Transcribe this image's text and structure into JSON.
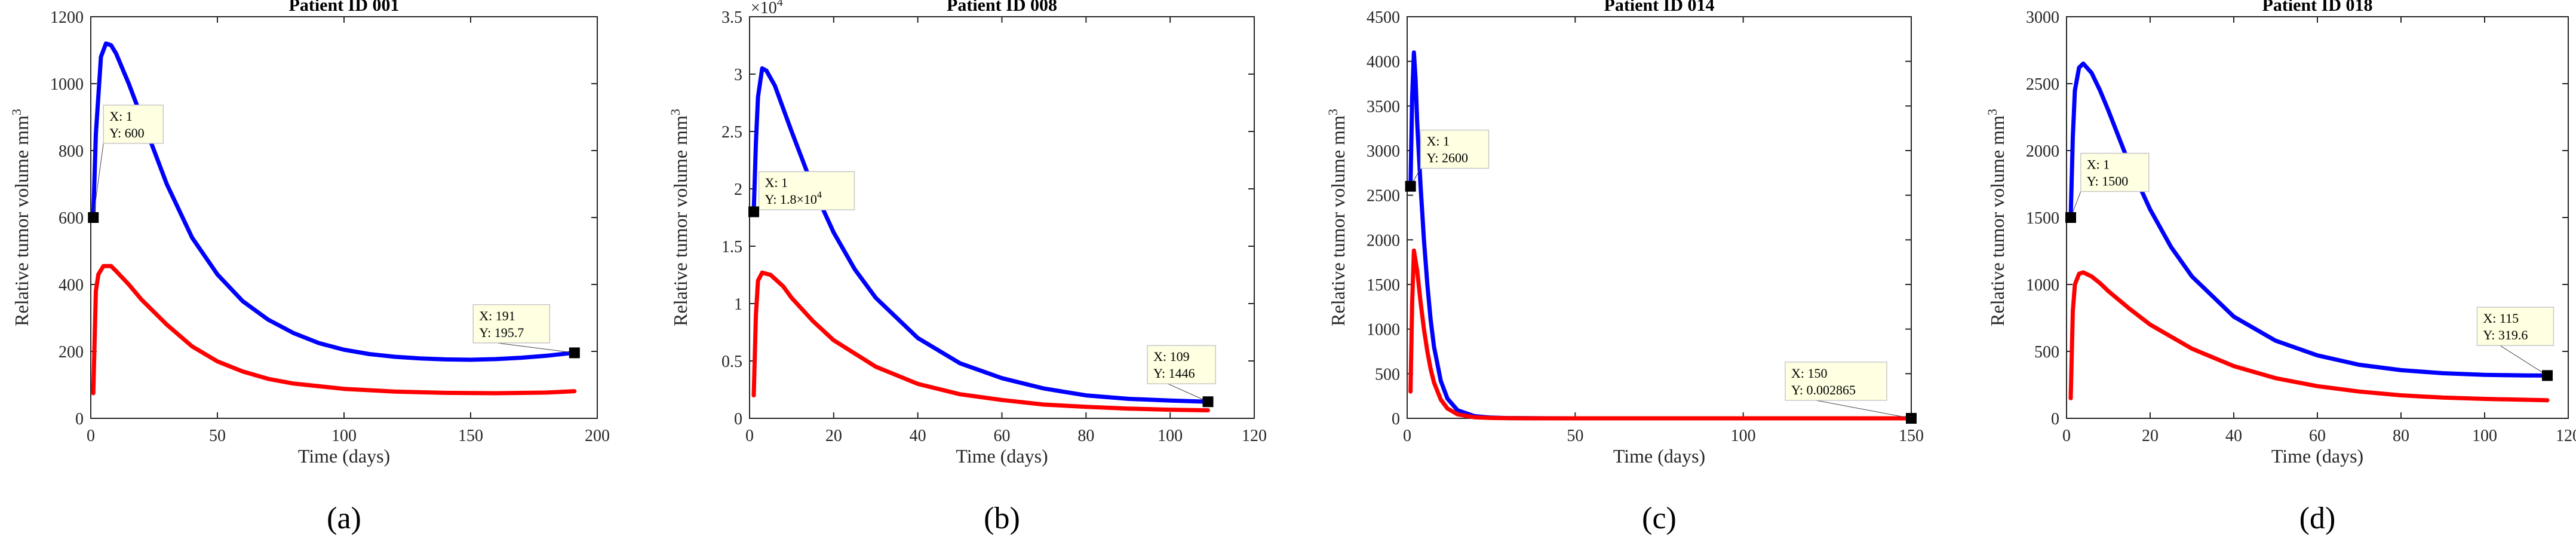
{
  "chart_data": [
    {
      "type": "line",
      "panel_label": "(a)",
      "panel_letter": "a",
      "title": "Patient ID 001",
      "xlabel": "Time (days)",
      "ylabel": "Relative tumor volume mm",
      "ylabel_superscript": "3",
      "xlim": [
        0,
        200
      ],
      "ylim": [
        0,
        1200
      ],
      "xticks": [
        0,
        50,
        100,
        150,
        200
      ],
      "yticks": [
        0,
        200,
        400,
        600,
        800,
        1000,
        1200
      ],
      "ytick_multiplier": "",
      "ytick_multiplier_exp": "",
      "series": [
        {
          "name": "upper",
          "color": "#0000ff",
          "x": [
            1,
            2,
            4,
            6,
            8,
            10,
            15,
            20,
            25,
            30,
            40,
            50,
            60,
            70,
            80,
            90,
            100,
            110,
            120,
            130,
            140,
            150,
            160,
            170,
            180,
            191
          ],
          "y": [
            600,
            850,
            1080,
            1120,
            1115,
            1090,
            1000,
            900,
            800,
            700,
            540,
            430,
            350,
            295,
            255,
            225,
            205,
            192,
            184,
            179,
            176,
            175,
            177,
            181,
            187,
            196
          ]
        },
        {
          "name": "lower",
          "color": "#ff0000",
          "x": [
            1,
            2,
            3,
            5,
            8,
            10,
            15,
            20,
            30,
            40,
            50,
            60,
            70,
            80,
            100,
            120,
            140,
            160,
            180,
            191
          ],
          "y": [
            75,
            380,
            430,
            455,
            455,
            440,
            400,
            355,
            280,
            215,
            170,
            140,
            118,
            104,
            88,
            80,
            76,
            75,
            77,
            81
          ]
        }
      ],
      "datatips": [
        {
          "x": 1,
          "y": 600,
          "label_x": "X: 1",
          "label_y": "Y: 600",
          "label_y_exp": "",
          "box_dx": 0.02,
          "box_dy": 0.28
        },
        {
          "x": 191,
          "y": 195.7,
          "label_x": "X: 191",
          "label_y": "Y: 195.7",
          "label_y_exp": "",
          "box_dx": -0.2,
          "box_dy": 0.12
        }
      ]
    },
    {
      "type": "line",
      "panel_label": "(b)",
      "panel_letter": "b",
      "title": "Patient ID 008",
      "xlabel": "Time (days)",
      "ylabel": "Relative tumor volume mm",
      "ylabel_superscript": "3",
      "xlim": [
        0,
        120
      ],
      "ylim": [
        0,
        3.5
      ],
      "xticks": [
        0,
        20,
        40,
        60,
        80,
        100,
        120
      ],
      "yticks": [
        0,
        0.5,
        1,
        1.5,
        2,
        2.5,
        3,
        3.5
      ],
      "ytick_multiplier": "×10",
      "ytick_multiplier_exp": "4",
      "series": [
        {
          "name": "upper",
          "color": "#0000ff",
          "x": [
            1,
            1.5,
            2,
            3,
            4,
            6,
            8,
            10,
            15,
            20,
            25,
            30,
            40,
            50,
            60,
            70,
            80,
            90,
            100,
            109
          ],
          "y": [
            1.8,
            2.4,
            2.8,
            3.05,
            3.03,
            2.9,
            2.7,
            2.5,
            2.02,
            1.62,
            1.3,
            1.05,
            0.7,
            0.48,
            0.35,
            0.26,
            0.2,
            0.17,
            0.155,
            0.1446
          ]
        },
        {
          "name": "lower",
          "color": "#ff0000",
          "x": [
            1,
            1.5,
            2,
            3,
            5,
            8,
            10,
            15,
            20,
            30,
            40,
            50,
            60,
            70,
            80,
            90,
            100,
            109
          ],
          "y": [
            0.2,
            0.9,
            1.2,
            1.27,
            1.25,
            1.15,
            1.05,
            0.85,
            0.68,
            0.45,
            0.3,
            0.21,
            0.16,
            0.12,
            0.1,
            0.085,
            0.075,
            0.07
          ]
        }
      ],
      "datatips": [
        {
          "x": 1,
          "y": 1.8,
          "label_x": "X: 1",
          "label_y": "Y: 1.8×10",
          "label_y_exp": "4",
          "box_dx": 0.01,
          "box_dy": 0.1
        },
        {
          "x": 109,
          "y": 0.1446,
          "label_x": "X: 109",
          "label_y": "Y: 1446",
          "label_y_exp": "",
          "box_dx": -0.12,
          "box_dy": 0.14
        }
      ]
    },
    {
      "type": "line",
      "panel_label": "(c)",
      "panel_letter": "c",
      "title": "Patient ID 014",
      "xlabel": "Time (days)",
      "ylabel": "Relative tumor volume mm",
      "ylabel_superscript": "3",
      "xlim": [
        0,
        150
      ],
      "ylim": [
        0,
        4500
      ],
      "xticks": [
        0,
        50,
        100,
        150
      ],
      "yticks": [
        0,
        500,
        1000,
        1500,
        2000,
        2500,
        3000,
        3500,
        4000,
        4500
      ],
      "ytick_multiplier": "",
      "ytick_multiplier_exp": "",
      "series": [
        {
          "name": "upper",
          "color": "#0000ff",
          "x": [
            1,
            1.5,
            2,
            2.5,
            3,
            4,
            5,
            6,
            7,
            8,
            10,
            12,
            15,
            20,
            25,
            30,
            40,
            50,
            75,
            100,
            150
          ],
          "y": [
            2600,
            3600,
            4100,
            3800,
            3300,
            2600,
            2000,
            1500,
            1100,
            800,
            420,
            220,
            90,
            25,
            8,
            3,
            0.5,
            0.1,
            0.01,
            0.005,
            0.002865
          ]
        },
        {
          "name": "lower",
          "color": "#ff0000",
          "x": [
            1,
            1.5,
            2,
            3,
            4,
            5,
            6,
            7,
            8,
            10,
            12,
            15,
            20,
            25,
            30,
            40,
            50,
            75,
            100,
            150
          ],
          "y": [
            300,
            1300,
            1880,
            1650,
            1300,
            1000,
            750,
            550,
            400,
            210,
            110,
            45,
            12,
            4,
            1.5,
            0.3,
            0.05,
            0.01,
            0.005,
            0.002
          ]
        }
      ],
      "datatips": [
        {
          "x": 1,
          "y": 2600,
          "label_x": "X: 1",
          "label_y": "Y: 2600",
          "label_y_exp": "",
          "box_dx": 0.02,
          "box_dy": 0.14
        },
        {
          "x": 150,
          "y": 0.002865,
          "label_x": "X: 150",
          "label_y": "Y: 0.002865",
          "label_y_exp": "",
          "box_dx": -0.25,
          "box_dy": 0.14
        }
      ]
    },
    {
      "type": "line",
      "panel_label": "(d)",
      "panel_letter": "d",
      "title": "Patient ID 018",
      "xlabel": "Time (days)",
      "ylabel": "Relative tumor volume mm",
      "ylabel_superscript": "3",
      "xlim": [
        0,
        120
      ],
      "ylim": [
        0,
        3000
      ],
      "xticks": [
        0,
        20,
        40,
        60,
        80,
        100,
        120
      ],
      "yticks": [
        0,
        500,
        1000,
        1500,
        2000,
        2500,
        3000
      ],
      "ytick_multiplier": "",
      "ytick_multiplier_exp": "",
      "series": [
        {
          "name": "upper",
          "color": "#0000ff",
          "x": [
            1,
            1.5,
            2,
            3,
            4,
            6,
            8,
            10,
            15,
            20,
            25,
            30,
            40,
            50,
            60,
            70,
            80,
            90,
            100,
            110,
            115
          ],
          "y": [
            1500,
            2100,
            2450,
            2620,
            2650,
            2580,
            2450,
            2300,
            1900,
            1560,
            1280,
            1060,
            760,
            580,
            470,
            400,
            360,
            337,
            325,
            320,
            319.6
          ]
        },
        {
          "name": "lower",
          "color": "#ff0000",
          "x": [
            1,
            1.5,
            2,
            3,
            4,
            6,
            8,
            10,
            15,
            20,
            30,
            40,
            50,
            60,
            70,
            80,
            90,
            100,
            115
          ],
          "y": [
            150,
            800,
            1000,
            1080,
            1090,
            1060,
            1010,
            950,
            820,
            700,
            520,
            390,
            300,
            240,
            200,
            172,
            155,
            145,
            135
          ]
        }
      ],
      "datatips": [
        {
          "x": 1,
          "y": 1500,
          "label_x": "X: 1",
          "label_y": "Y: 1500",
          "label_y_exp": "",
          "box_dx": 0.02,
          "box_dy": 0.16
        },
        {
          "x": 115,
          "y": 319.6,
          "label_x": "X: 115",
          "label_y": "Y: 319.6",
          "label_y_exp": "",
          "box_dx": -0.14,
          "box_dy": 0.17
        }
      ]
    }
  ]
}
